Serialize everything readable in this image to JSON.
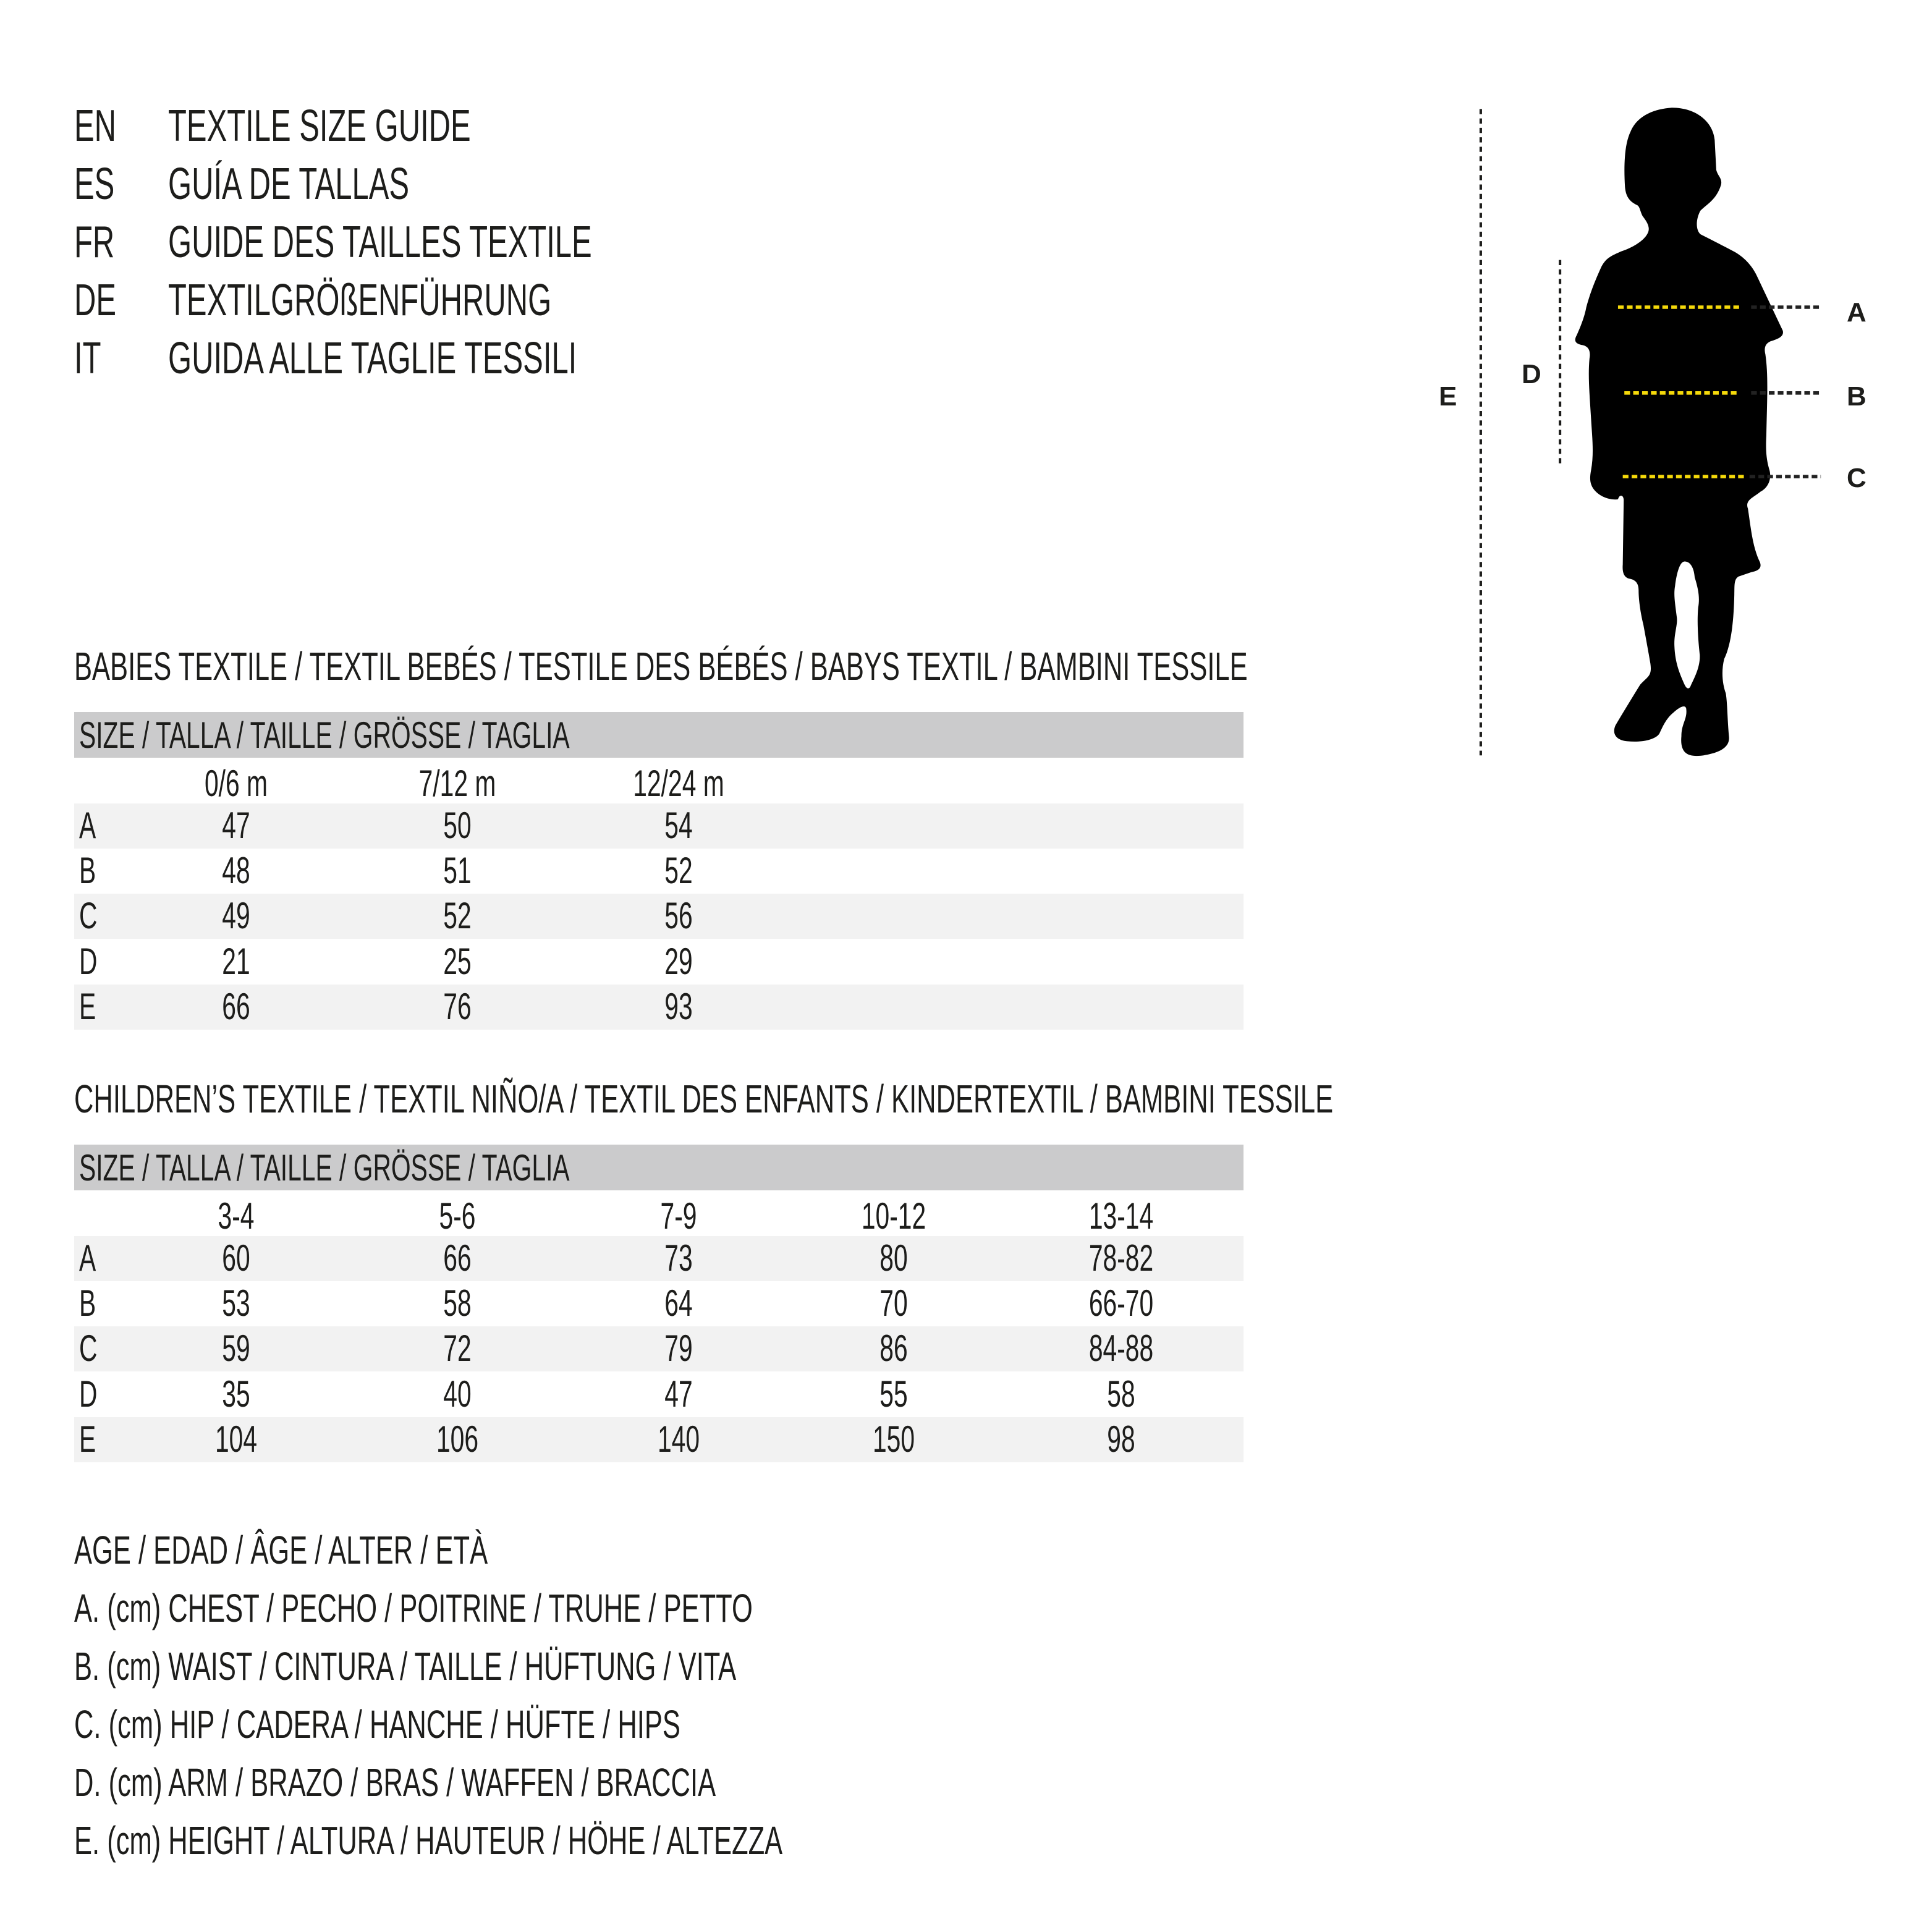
{
  "header": {
    "lines": [
      {
        "code": "EN",
        "title": "TEXTILE SIZE GUIDE"
      },
      {
        "code": "ES",
        "title": "GUÍA DE TALLAS"
      },
      {
        "code": "FR",
        "title": "GUIDE DES TAILLES TEXTILE"
      },
      {
        "code": "DE",
        "title": "TEXTILGRÖßENFÜHRUNG"
      },
      {
        "code": "IT",
        "title": "GUIDA ALLE TAGLIE TESSILI"
      }
    ]
  },
  "figure": {
    "labels": {
      "a": "A",
      "b": "B",
      "c": "C",
      "d": "D",
      "e": "E"
    },
    "colors": {
      "silhouette": "#000000",
      "measure_line": "#f5d90a",
      "guide_line": "#1d1d1b"
    }
  },
  "babies": {
    "title": "BABIES TEXTILE / TEXTIL BEBÉS / TESTILE DES BÉBÉS / BABYS TEXTIL / BAMBINI TESSILE",
    "size_header": "SIZE / TALLA / TAILLE / GRÖSSE / TAGLIA",
    "columns": [
      "0/6 m",
      "7/12 m",
      "12/24 m"
    ],
    "rows": [
      {
        "label": "A",
        "values": [
          "47",
          "50",
          "54"
        ]
      },
      {
        "label": "B",
        "values": [
          "48",
          "51",
          "52"
        ]
      },
      {
        "label": "C",
        "values": [
          "49",
          "52",
          "56"
        ]
      },
      {
        "label": "D",
        "values": [
          "21",
          "25",
          "29"
        ]
      },
      {
        "label": "E",
        "values": [
          "66",
          "76",
          "93"
        ]
      }
    ]
  },
  "children": {
    "title": "CHILDREN’S TEXTILE / TEXTIL NIÑO/A / TEXTIL DES ENFANTS / KINDERTEXTIL / BAMBINI TESSILE",
    "size_header": "SIZE / TALLA / TAILLE / GRÖSSE / TAGLIA",
    "columns": [
      "3-4",
      "5-6",
      "7-9",
      "10-12",
      "13-14"
    ],
    "rows": [
      {
        "label": "A",
        "values": [
          "60",
          "66",
          "73",
          "80",
          "78-82"
        ]
      },
      {
        "label": "B",
        "values": [
          "53",
          "58",
          "64",
          "70",
          "66-70"
        ]
      },
      {
        "label": "C",
        "values": [
          "59",
          "72",
          "79",
          "86",
          "84-88"
        ]
      },
      {
        "label": "D",
        "values": [
          "35",
          "40",
          "47",
          "55",
          "58"
        ]
      },
      {
        "label": "E",
        "values": [
          "104",
          "106",
          "140",
          "150",
          "98"
        ]
      }
    ]
  },
  "legend": {
    "lines": [
      "AGE / EDAD / ÂGE / ALTER / ETÀ",
      "A. (cm) CHEST / PECHO / POITRINE / TRUHE / PETTO",
      "B. (cm) WAIST / CINTURA / TAILLE / HÜFTUNG / VITA",
      "C. (cm) HIP / CADERA / HANCHE / HÜFTE / HIPS",
      "D. (cm) ARM / BRAZO / BRAS / WAFFEN / BRACCIA",
      "E. (cm) HEIGHT / ALTURA / HAUTEUR / HÖHE / ALTEZZA"
    ]
  }
}
